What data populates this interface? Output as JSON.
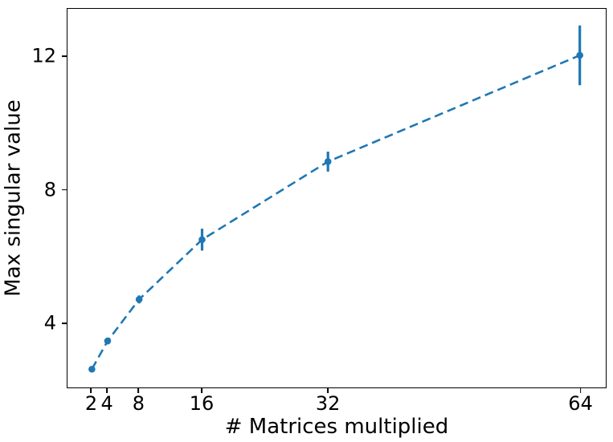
{
  "figure": {
    "background": "#ffffff",
    "text_color": "#000000",
    "accent": "#1f77b4"
  },
  "chart_data": {
    "type": "line",
    "title": "",
    "xlabel": "# Matrices multiplied",
    "ylabel": "Max singular value",
    "x": [
      2,
      4,
      8,
      16,
      32,
      64
    ],
    "series": [
      {
        "name": "max_singular_value",
        "values": [
          2.6,
          3.45,
          4.7,
          6.5,
          8.85,
          12.05
        ],
        "yerr": [
          0.05,
          0.1,
          0.12,
          0.33,
          0.3,
          0.9
        ]
      }
    ],
    "line_style": "dashed",
    "marker": "circle",
    "error_bars": true,
    "error_bar_caps": false,
    "grid": false,
    "legend_position": "none",
    "xticks": [
      2,
      4,
      8,
      16,
      32,
      64
    ],
    "xtick_labels": [
      "2",
      "4",
      "8",
      "16",
      "32",
      "64"
    ],
    "yticks": [
      4,
      8,
      12
    ],
    "ytick_labels": [
      "4",
      "8",
      "12"
    ],
    "xlim": [
      -1.1,
      67.3
    ],
    "ylim": [
      2.05,
      13.45
    ],
    "x_scale": "linear",
    "y_scale": "linear"
  }
}
